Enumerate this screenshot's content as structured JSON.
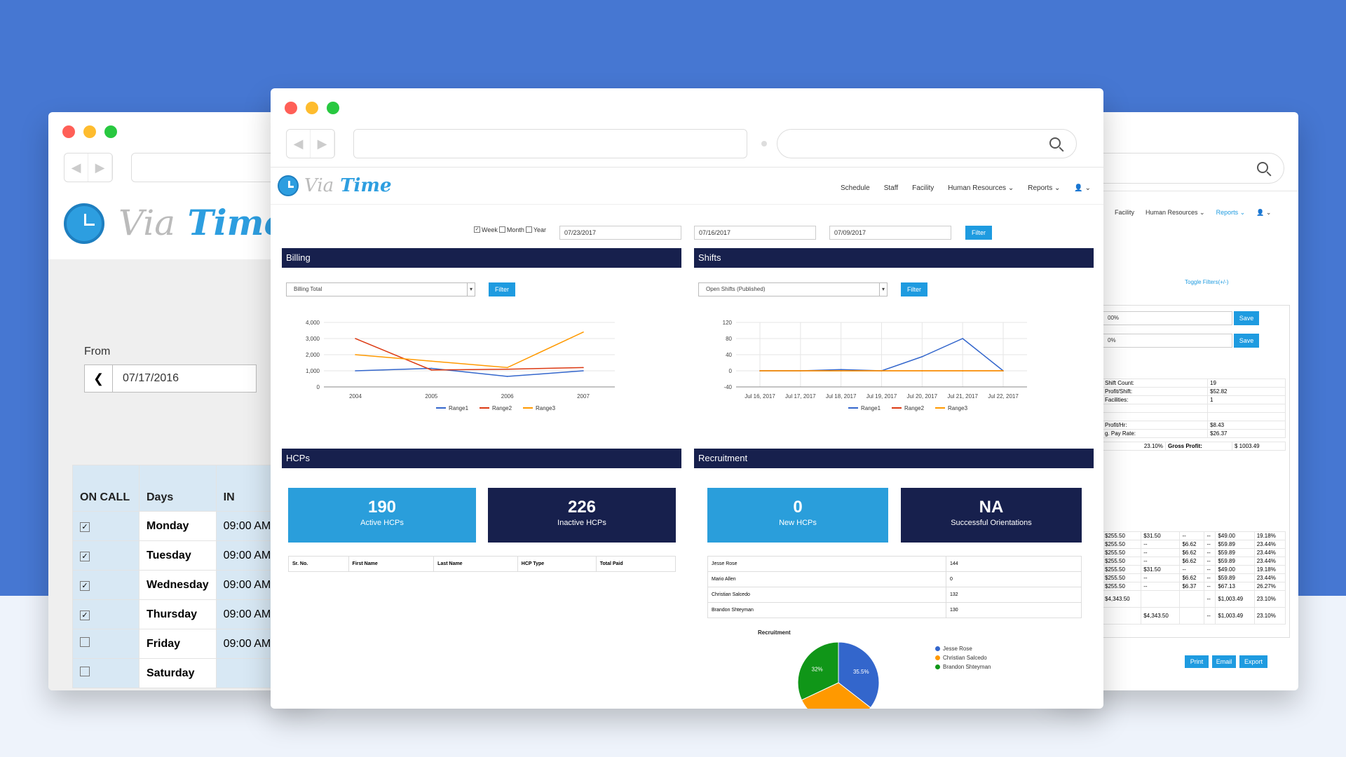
{
  "brand": {
    "via": "Via",
    "time": "Time"
  },
  "colors": {
    "accent": "#1e9be0",
    "navy": "#17204d",
    "bg": "#4677d2",
    "red": "#ff5f57",
    "yellow": "#febc2e",
    "green": "#28c840"
  },
  "left": {
    "from_label": "From",
    "from_date": "07/17/2016",
    "back_icon": "chevron-left-icon",
    "headers": [
      "ON CALL",
      "Days",
      "IN"
    ],
    "rows": [
      {
        "checked": true,
        "day": "Monday",
        "in": "09:00 AM"
      },
      {
        "checked": true,
        "day": "Tuesday",
        "in": "09:00 AM"
      },
      {
        "checked": true,
        "day": "Wednesday",
        "in": "09:00 AM"
      },
      {
        "checked": true,
        "day": "Thursday",
        "in": "09:00 AM"
      },
      {
        "checked": false,
        "day": "Friday",
        "in": "09:00 AM"
      },
      {
        "checked": false,
        "day": "Saturday",
        "in": ""
      }
    ]
  },
  "nav": [
    "Schedule",
    "Staff",
    "Facility",
    "Human Resources ⌄",
    "Reports ⌄",
    "👤 ⌄"
  ],
  "filters": {
    "week": "Week",
    "month": "Month",
    "year": "Year",
    "date1": "07/23/2017",
    "date2": "07/16/2017",
    "date3": "07/09/2017",
    "filter": "Filter"
  },
  "billing": {
    "title": "Billing",
    "select": "Billing Total",
    "filter": "Filter",
    "chart_data": {
      "type": "line",
      "x": [
        "2004",
        "2005",
        "2006",
        "2007"
      ],
      "ylim": [
        0,
        4000
      ],
      "yticks": [
        "4,000",
        "3,000",
        "2,000",
        "1,000",
        "0"
      ],
      "series": [
        {
          "name": "Range1",
          "values": [
            1000,
            1150,
            650,
            1000
          ],
          "color": "#3366cc"
        },
        {
          "name": "Range2",
          "values": [
            3000,
            1050,
            1100,
            1200
          ],
          "color": "#dc3912"
        },
        {
          "name": "Range3",
          "values": [
            2000,
            1600,
            1200,
            3400
          ],
          "color": "#ff9900"
        }
      ]
    }
  },
  "shifts": {
    "title": "Shifts",
    "select": "Open Shifts (Published)",
    "filter": "Filter",
    "chart_data": {
      "type": "line",
      "x": [
        "Jul 16, 2017",
        "Jul 17, 2017",
        "Jul 18, 2017",
        "Jul 19, 2017",
        "Jul 20, 2017",
        "Jul 21, 2017",
        "Jul 22, 2017"
      ],
      "ylim": [
        -40,
        120
      ],
      "yticks": [
        "120",
        "80",
        "40",
        "0",
        "-40"
      ],
      "series": [
        {
          "name": "Range1",
          "values": [
            0,
            0,
            3,
            0,
            35,
            80,
            0
          ],
          "color": "#3366cc"
        },
        {
          "name": "Range2",
          "values": [
            0,
            0,
            0,
            0,
            0,
            0,
            0
          ],
          "color": "#dc3912"
        },
        {
          "name": "Range3",
          "values": [
            0,
            0,
            0,
            0,
            0,
            0,
            0
          ],
          "color": "#ff9900"
        }
      ]
    }
  },
  "hcps": {
    "title": "HCPs",
    "active_n": "190",
    "active_l": "Active HCPs",
    "inactive_n": "226",
    "inactive_l": "Inactive HCPs",
    "cols": [
      "Sr. No.",
      "First Name",
      "Last Name",
      "HCP Type",
      "Total Paid"
    ]
  },
  "recruit": {
    "title": "Recruitment",
    "new_n": "0",
    "new_l": "New HCPs",
    "orient_n": "NA",
    "orient_l": "Successful Orientations",
    "rows": [
      {
        "name": "Jesse Rose",
        "val": "144"
      },
      {
        "name": "Mario Allen",
        "val": "0"
      },
      {
        "name": "Christian Salcedo",
        "val": "132"
      },
      {
        "name": "Brandon Shteyman",
        "val": "130"
      }
    ],
    "chart_data": {
      "type": "pie",
      "title": "Recruitment",
      "labels": [
        "Jesse Rose",
        "Christian Salcedo",
        "Brandon Shteyman"
      ],
      "values": [
        35.5,
        32.5,
        32
      ],
      "slice_labels": [
        "35.5%",
        "",
        "32%"
      ],
      "colors": [
        "#3366cc",
        "#ff9900",
        "#109618"
      ]
    }
  },
  "right": {
    "nav": [
      "Facility",
      "Human Resources ⌄",
      "Reports ⌄",
      "👤 ⌄"
    ],
    "toggle": "Toggle Filters(+/-)",
    "inputs": [
      "00%",
      "0%"
    ],
    "save": "Save",
    "stats": [
      {
        "label": "Shift Count:",
        "value": "19"
      },
      {
        "label": "Profit/Shift:",
        "value": "$52.82"
      },
      {
        "label": "Facilities:",
        "value": "1"
      },
      {
        "label": "",
        "value": ""
      },
      {
        "label": "",
        "value": ""
      },
      {
        "label": "Profit/Hr:",
        "value": "$8.43"
      },
      {
        "label": "g. Pay Rate:",
        "value": "$26.37"
      }
    ],
    "gp_pct": "23.10%",
    "gp_label": "Gross Profit:",
    "gp_value": "$ 1003.49",
    "table": [
      [
        "$255.50",
        "$31.50",
        "--",
        "--",
        "$49.00",
        "19.18%"
      ],
      [
        "$255.50",
        "--",
        "$6.62",
        "--",
        "$59.89",
        "23.44%"
      ],
      [
        "$255.50",
        "--",
        "$6.62",
        "--",
        "$59.89",
        "23.44%"
      ],
      [
        "$255.50",
        "--",
        "$6.62",
        "--",
        "$59.89",
        "23.44%"
      ],
      [
        "$255.50",
        "$31.50",
        "--",
        "--",
        "$49.00",
        "19.18%"
      ],
      [
        "$255.50",
        "--",
        "$6.62",
        "--",
        "$59.89",
        "23.44%"
      ],
      [
        "$255.50",
        "--",
        "$6.37",
        "--",
        "$67.13",
        "26.27%"
      ]
    ],
    "total1": [
      "$4,343.50",
      "",
      "",
      "--",
      "$1,003.49",
      "23.10%"
    ],
    "total2": [
      "",
      "$4,343.50",
      "",
      "--",
      "$1,003.49",
      "23.10%"
    ],
    "print": "Print",
    "email": "Email",
    "export": "Export"
  }
}
